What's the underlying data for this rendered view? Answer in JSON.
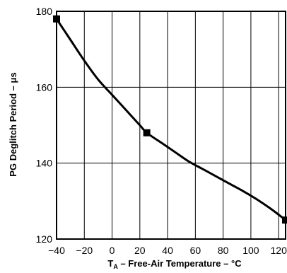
{
  "chart_data": {
    "type": "line",
    "xlabel_main": "T",
    "xlabel_sub": "A",
    "xlabel_rest": " – Free-Air Temperature – °C",
    "ylabel": "PG Deglitch Period – μs",
    "xlim": [
      -40,
      125
    ],
    "ylim": [
      120,
      180
    ],
    "x_ticks": [
      -40,
      -20,
      0,
      20,
      40,
      60,
      80,
      100,
      120
    ],
    "x_tick_labels": [
      "−40",
      "−20",
      "0",
      "20",
      "40",
      "60",
      "80",
      "100",
      "120"
    ],
    "y_ticks": [
      120,
      140,
      160,
      180
    ],
    "y_tick_labels": [
      "120",
      "140",
      "160",
      "180"
    ],
    "grid": true,
    "series": [
      {
        "x": [
          -40,
          -30,
          -20,
          -10,
          0,
          10,
          20,
          25,
          35,
          45,
          55,
          65,
          75,
          85,
          95,
          105,
          115,
          125
        ],
        "y": [
          178,
          172.5,
          167,
          162,
          158,
          154,
          150,
          148,
          145.5,
          143,
          140.5,
          138.5,
          136.5,
          134.5,
          132.5,
          130.3,
          127.8,
          125
        ],
        "markers": [
          {
            "x": -40,
            "y": 178
          },
          {
            "x": 25,
            "y": 148
          },
          {
            "x": 125,
            "y": 125
          }
        ]
      }
    ]
  }
}
